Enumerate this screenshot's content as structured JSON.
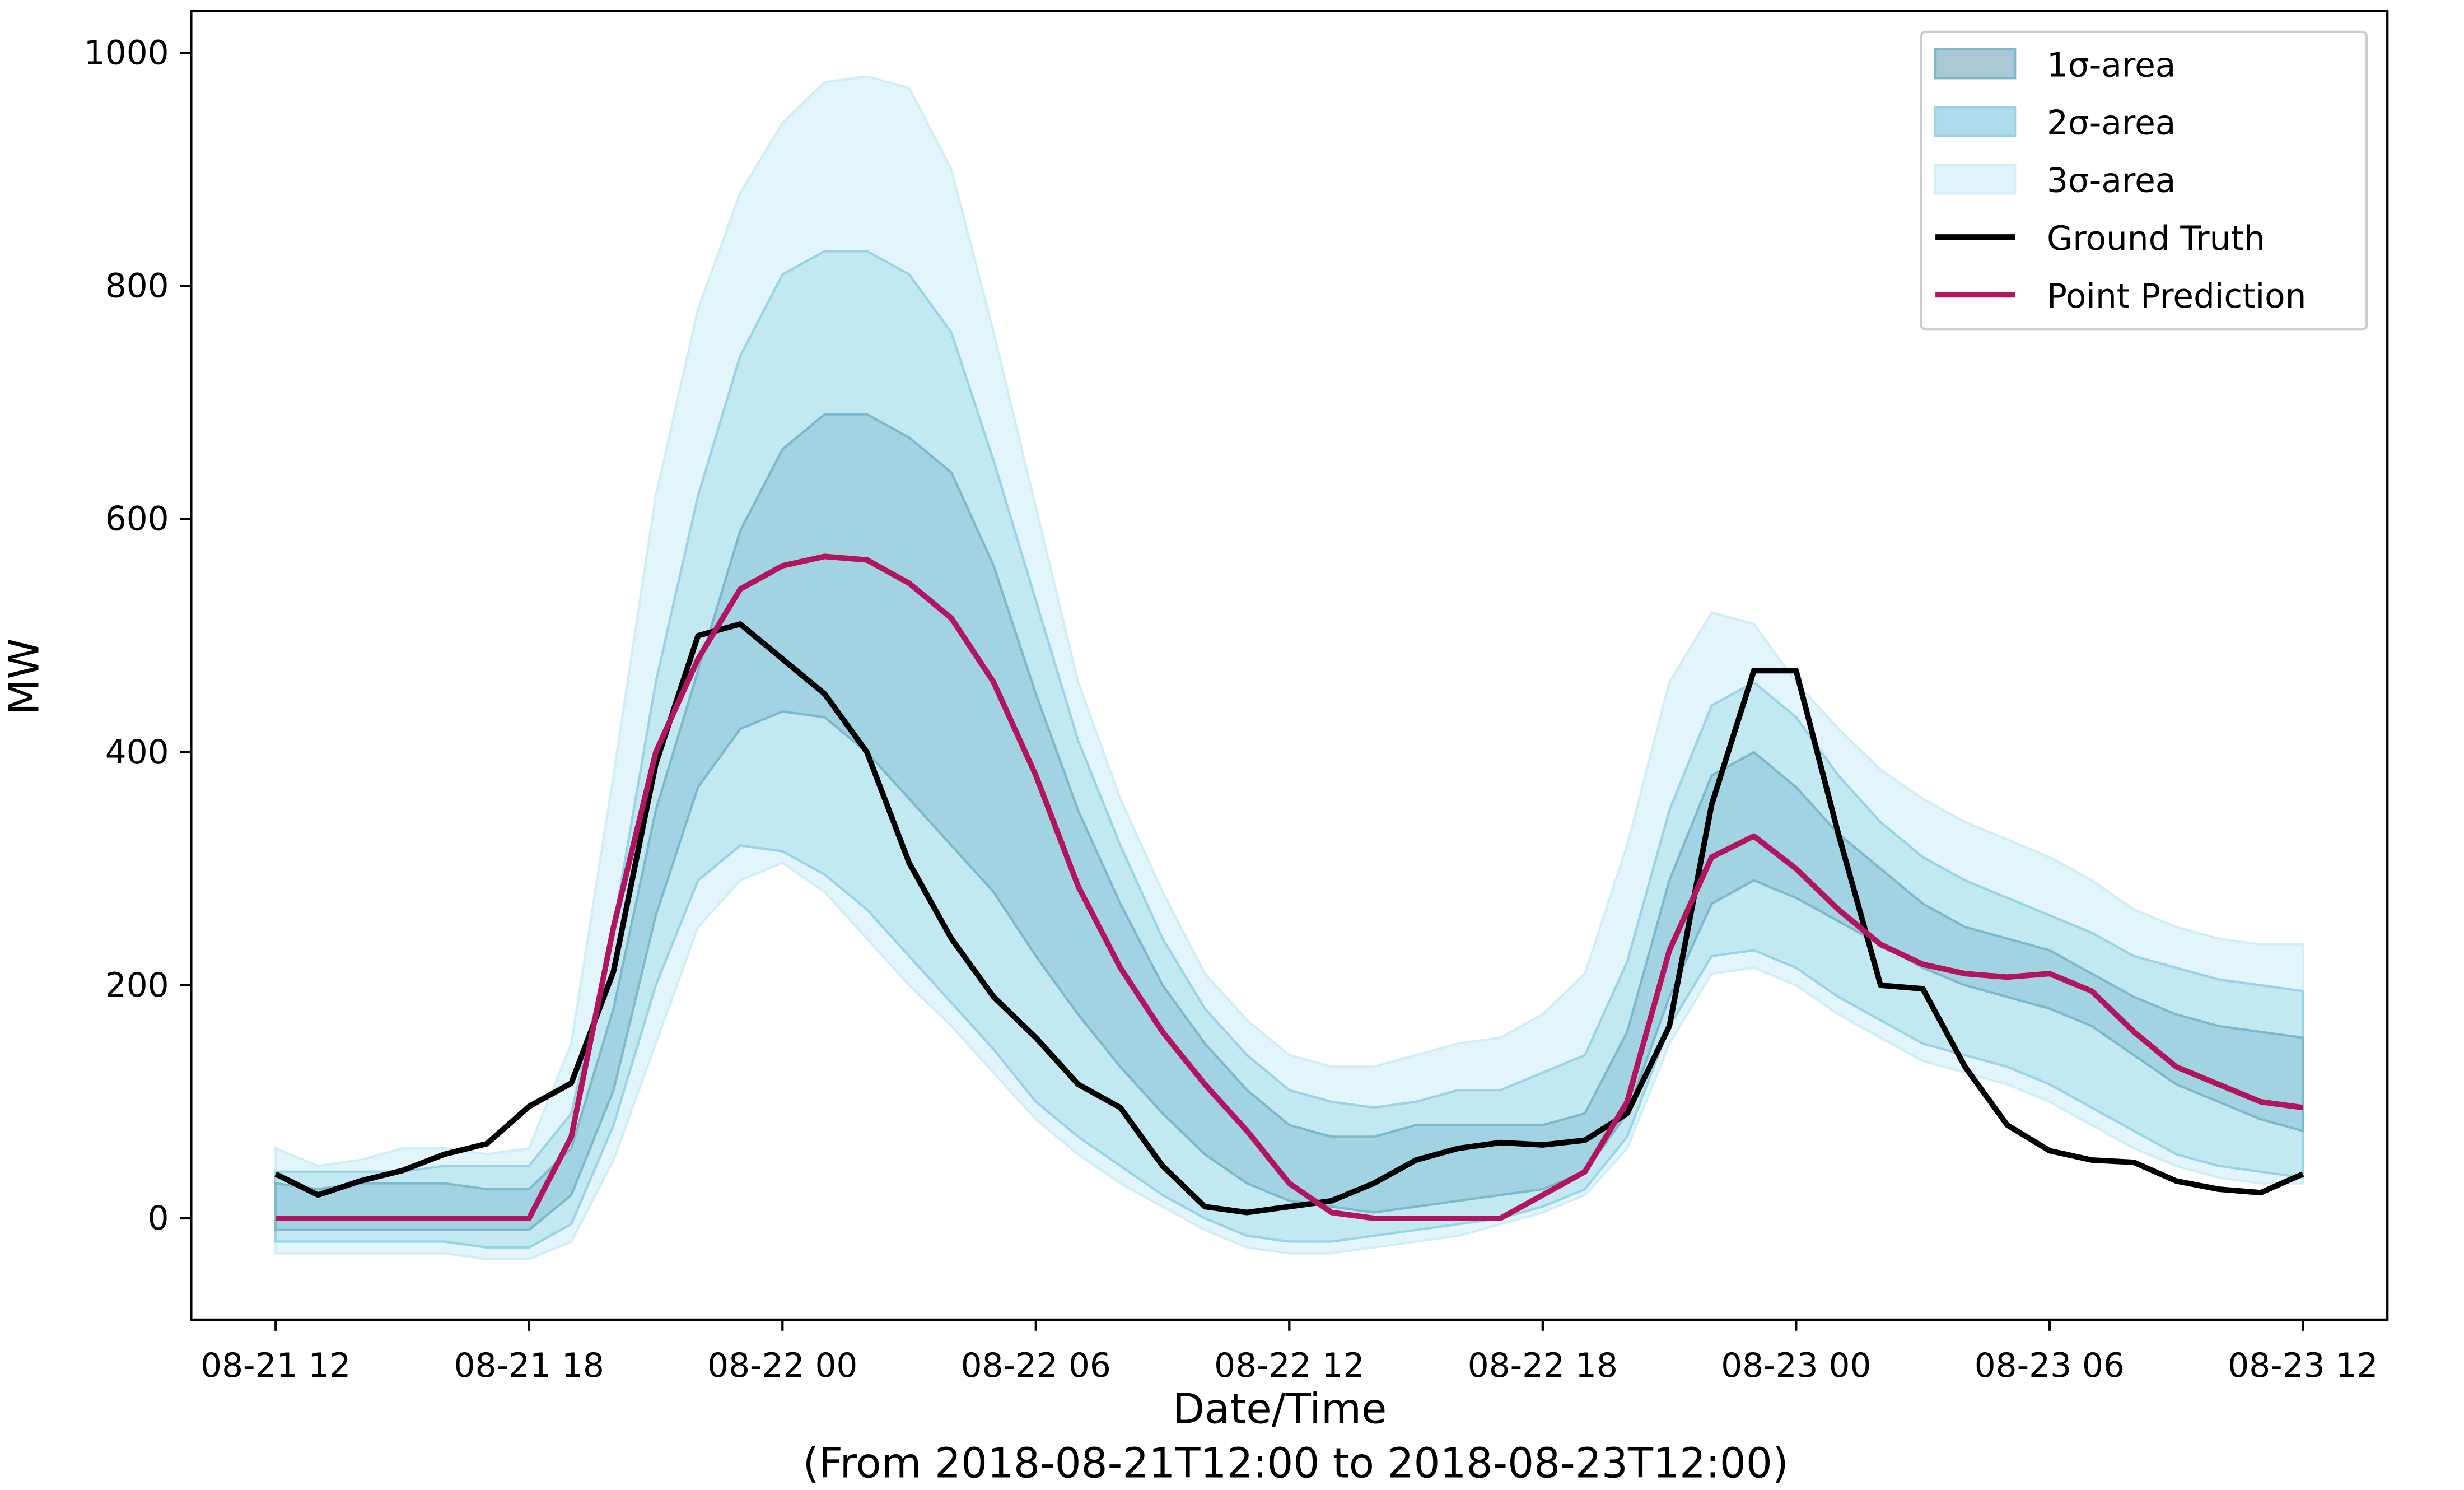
{
  "chart_data": {
    "type": "line",
    "xlabel": "Date/Time",
    "subtitle": "(From 2018-08-21T12:00 to 2018-08-23T12:00)",
    "ylabel": "MW",
    "x": [
      "08-21 12",
      "08-21 13",
      "08-21 14",
      "08-21 15",
      "08-21 16",
      "08-21 17",
      "08-21 18",
      "08-21 19",
      "08-21 20",
      "08-21 21",
      "08-21 22",
      "08-21 23",
      "08-22 00",
      "08-22 01",
      "08-22 02",
      "08-22 03",
      "08-22 04",
      "08-22 05",
      "08-22 06",
      "08-22 07",
      "08-22 08",
      "08-22 09",
      "08-22 10",
      "08-22 11",
      "08-22 12",
      "08-22 13",
      "08-22 14",
      "08-22 15",
      "08-22 16",
      "08-22 17",
      "08-22 18",
      "08-22 19",
      "08-22 20",
      "08-22 21",
      "08-22 22",
      "08-22 23",
      "08-23 00",
      "08-23 01",
      "08-23 02",
      "08-23 03",
      "08-23 04",
      "08-23 05",
      "08-23 06",
      "08-23 07",
      "08-23 08",
      "08-23 09",
      "08-23 10",
      "08-23 11",
      "08-23 12"
    ],
    "xlim": [
      "08-21 10",
      "08-23 14"
    ],
    "xticks": [
      "08-21 12",
      "08-21 18",
      "08-22 00",
      "08-22 06",
      "08-22 12",
      "08-22 18",
      "08-23 00",
      "08-23 06",
      "08-23 12"
    ],
    "ylim": [
      -87,
      1036
    ],
    "yticks": [
      0,
      200,
      400,
      600,
      800,
      1000
    ],
    "legend": "upper right",
    "series": [
      {
        "name": "1σ-area",
        "kind": "band",
        "color": "#a2d3e2",
        "legend_color": "#a9cad5",
        "edge": "#7db8cc",
        "upper": [
          30,
          25,
          30,
          30,
          30,
          25,
          25,
          60,
          180,
          350,
          470,
          590,
          660,
          690,
          690,
          670,
          640,
          560,
          450,
          350,
          270,
          200,
          150,
          110,
          80,
          70,
          70,
          80,
          80,
          80,
          80,
          90,
          160,
          290,
          380,
          400,
          370,
          330,
          300,
          270,
          250,
          240,
          230,
          210,
          190,
          175,
          165,
          160,
          155
        ],
        "lower": [
          -10,
          -10,
          -10,
          -10,
          -10,
          -10,
          -10,
          20,
          110,
          260,
          370,
          420,
          435,
          430,
          400,
          360,
          320,
          280,
          225,
          175,
          130,
          90,
          55,
          30,
          15,
          10,
          5,
          10,
          15,
          20,
          25,
          40,
          90,
          190,
          270,
          290,
          275,
          255,
          235,
          215,
          200,
          190,
          180,
          165,
          140,
          115,
          100,
          85,
          75
        ]
      },
      {
        "name": "2σ-area",
        "kind": "band",
        "color": "#c2e8f2",
        "legend_color": "#afdcea",
        "edge": "#9ad3e3",
        "upper": [
          40,
          40,
          40,
          40,
          45,
          45,
          45,
          90,
          250,
          460,
          620,
          740,
          810,
          830,
          830,
          810,
          760,
          650,
          530,
          410,
          320,
          240,
          180,
          140,
          110,
          100,
          95,
          100,
          110,
          110,
          125,
          140,
          220,
          350,
          440,
          460,
          430,
          380,
          340,
          310,
          290,
          275,
          260,
          245,
          225,
          215,
          205,
          200,
          195
        ],
        "lower": [
          -20,
          -20,
          -20,
          -20,
          -20,
          -25,
          -25,
          -5,
          80,
          200,
          290,
          320,
          315,
          295,
          265,
          225,
          185,
          145,
          100,
          70,
          45,
          20,
          0,
          -15,
          -20,
          -20,
          -15,
          -10,
          -5,
          0,
          10,
          25,
          70,
          165,
          225,
          230,
          215,
          190,
          170,
          150,
          140,
          130,
          115,
          95,
          75,
          55,
          45,
          40,
          35
        ]
      },
      {
        "name": "3σ-area",
        "kind": "band",
        "color": "#e2f5fa",
        "legend_color": "#dff3f9",
        "edge": "#d0eef6",
        "upper": [
          60,
          45,
          50,
          60,
          60,
          55,
          60,
          150,
          380,
          620,
          780,
          880,
          940,
          975,
          980,
          970,
          900,
          760,
          610,
          460,
          360,
          280,
          210,
          170,
          140,
          130,
          130,
          140,
          150,
          155,
          175,
          210,
          320,
          460,
          520,
          510,
          460,
          420,
          385,
          360,
          340,
          325,
          310,
          290,
          265,
          250,
          240,
          235,
          235
        ],
        "lower": [
          -30,
          -30,
          -30,
          -30,
          -30,
          -35,
          -35,
          -20,
          50,
          150,
          250,
          290,
          305,
          280,
          240,
          200,
          165,
          125,
          85,
          55,
          30,
          10,
          -10,
          -25,
          -30,
          -30,
          -25,
          -20,
          -15,
          -5,
          5,
          20,
          60,
          150,
          210,
          215,
          200,
          175,
          155,
          135,
          125,
          115,
          100,
          80,
          60,
          45,
          35,
          30,
          30
        ]
      },
      {
        "name": "Ground Truth",
        "kind": "line",
        "color": "#000000",
        "values": [
          38,
          20,
          32,
          41,
          55,
          64,
          96,
          116,
          212,
          390,
          500,
          510,
          480,
          450,
          400,
          305,
          240,
          190,
          155,
          115,
          95,
          45,
          10,
          5,
          10,
          15,
          30,
          50,
          60,
          65,
          63,
          67,
          90,
          165,
          355,
          470,
          470,
          330,
          200,
          197,
          130,
          80,
          58,
          50,
          48,
          32,
          25,
          22,
          38
        ]
      },
      {
        "name": "Point Prediction",
        "kind": "line",
        "color": "#b2155f",
        "values": [
          0,
          0,
          0,
          0,
          0,
          0,
          0,
          70,
          250,
          400,
          480,
          540,
          560,
          568,
          565,
          545,
          515,
          460,
          380,
          285,
          215,
          160,
          115,
          75,
          30,
          5,
          0,
          0,
          0,
          0,
          20,
          40,
          100,
          230,
          310,
          328,
          300,
          265,
          235,
          218,
          210,
          207,
          210,
          195,
          160,
          130,
          115,
          100,
          95
        ]
      }
    ]
  }
}
